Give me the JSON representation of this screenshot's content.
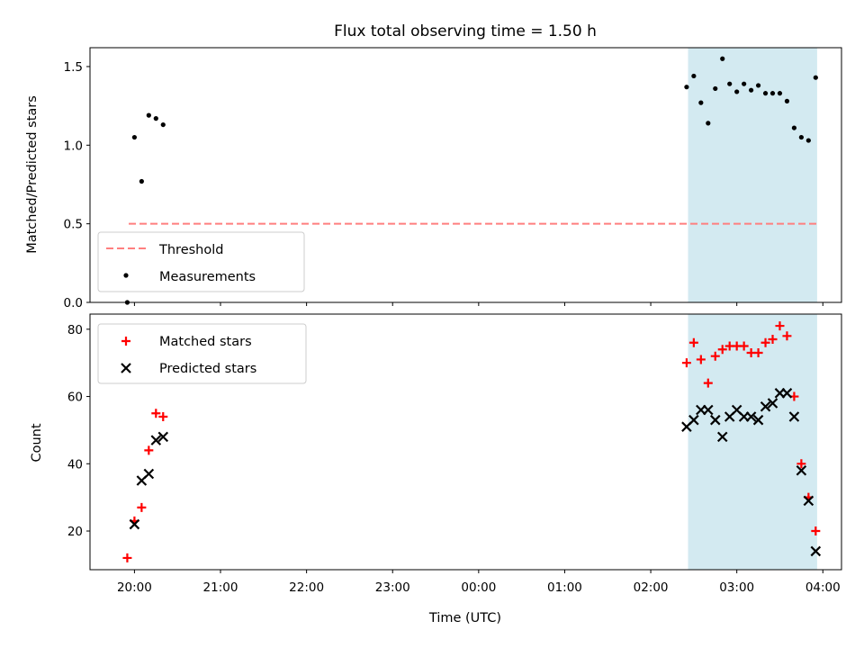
{
  "chart_data": [
    {
      "type": "scatter",
      "title": "Flux total observing time = 1.50 h",
      "xlabel": "",
      "ylabel": "Matched/Predicted stars",
      "ylim": [
        0,
        1.62
      ],
      "yticks": [
        0.0,
        0.5,
        1.0,
        1.5
      ],
      "ytick_labels": [
        "0.0",
        "0.5",
        "1.0",
        "1.5"
      ],
      "shaded_span": {
        "start": "02:26",
        "end": "03:56",
        "color": "#d3eaf1"
      },
      "threshold": {
        "name": "Threshold",
        "value": 0.5,
        "x_start": "19:56",
        "x_end": "03:56",
        "color": "#ff7f7f"
      },
      "series": [
        {
          "name": "Measurements",
          "color": "#000000",
          "marker": "dot",
          "x": [
            "19:55",
            "20:00",
            "20:05",
            "20:10",
            "20:15",
            "20:20",
            "02:25",
            "02:30",
            "02:35",
            "02:40",
            "02:45",
            "02:50",
            "02:55",
            "03:00",
            "03:05",
            "03:10",
            "03:15",
            "03:20",
            "03:25",
            "03:30",
            "03:35",
            "03:40",
            "03:45",
            "03:50",
            "03:55"
          ],
          "y": [
            0.0,
            1.05,
            0.77,
            1.19,
            1.17,
            1.13,
            1.37,
            1.44,
            1.27,
            1.14,
            1.36,
            1.55,
            1.39,
            1.34,
            1.39,
            1.35,
            1.38,
            1.33,
            1.33,
            1.33,
            1.28,
            1.11,
            1.05,
            1.03,
            1.43
          ]
        }
      ],
      "legend": [
        "Threshold",
        "Measurements"
      ],
      "legend_position": "lower-left"
    },
    {
      "type": "scatter",
      "title": "",
      "xlabel": "Time (UTC)",
      "ylabel": "Count",
      "xlim": [
        "19:29",
        "04:13"
      ],
      "ylim": [
        8.5,
        84.5
      ],
      "xticks": [
        "20:00",
        "21:00",
        "22:00",
        "23:00",
        "00:00",
        "01:00",
        "02:00",
        "03:00",
        "04:00"
      ],
      "yticks": [
        20,
        40,
        60,
        80
      ],
      "ytick_labels": [
        "20",
        "40",
        "60",
        "80"
      ],
      "shaded_span": {
        "start": "02:26",
        "end": "03:56",
        "color": "#d3eaf1"
      },
      "series": [
        {
          "name": "Matched stars",
          "color": "#ff0000",
          "marker": "plus",
          "x": [
            "19:55",
            "20:00",
            "20:05",
            "20:10",
            "20:15",
            "20:20",
            "02:25",
            "02:30",
            "02:35",
            "02:40",
            "02:45",
            "02:50",
            "02:55",
            "03:00",
            "03:05",
            "03:10",
            "03:15",
            "03:20",
            "03:25",
            "03:30",
            "03:35",
            "03:40",
            "03:45",
            "03:50",
            "03:55"
          ],
          "y": [
            12,
            23,
            27,
            44,
            55,
            54,
            70,
            76,
            71,
            64,
            72,
            74,
            75,
            75,
            75,
            73,
            73,
            76,
            77,
            81,
            78,
            60,
            40,
            30,
            20
          ]
        },
        {
          "name": "Predicted stars",
          "color": "#000000",
          "marker": "x",
          "x": [
            "19:55",
            "20:00",
            "20:05",
            "20:10",
            "20:15",
            "20:20",
            "02:25",
            "02:30",
            "02:35",
            "02:40",
            "02:45",
            "02:50",
            "02:55",
            "03:00",
            "03:05",
            "03:10",
            "03:15",
            "03:20",
            "03:25",
            "03:30",
            "03:35",
            "03:40",
            "03:45",
            "03:50",
            "03:55"
          ],
          "y": [
            null,
            22,
            35,
            37,
            47,
            48,
            51,
            53,
            56,
            56,
            53,
            48,
            54,
            56,
            54,
            54,
            53,
            57,
            58,
            61,
            61,
            54,
            38,
            29,
            14
          ]
        }
      ],
      "legend": [
        "Matched stars",
        "Predicted stars"
      ],
      "legend_position": "upper-left"
    }
  ]
}
